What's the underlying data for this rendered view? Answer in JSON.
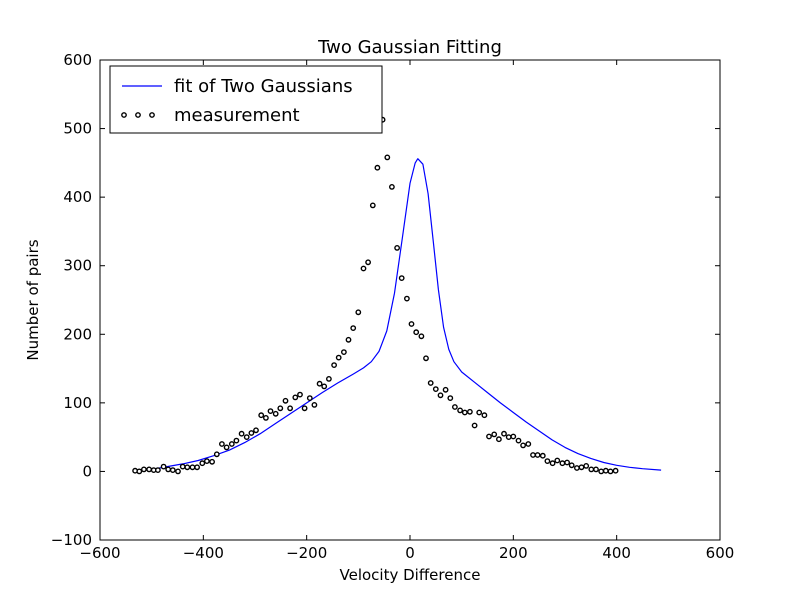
{
  "chart_data": {
    "type": "scatter",
    "title": "Two Gaussian Fitting",
    "xlabel": "Velocity Difference",
    "ylabel": "Number of pairs",
    "xlim": [
      -600,
      600
    ],
    "ylim": [
      -100,
      600
    ],
    "xticks": [
      -600,
      -400,
      -200,
      0,
      200,
      400,
      600
    ],
    "yticks": [
      -100,
      0,
      100,
      200,
      300,
      400,
      500,
      600
    ],
    "xtick_labels": [
      "−600",
      "−400",
      "−200",
      "0",
      "200",
      "400",
      "600"
    ],
    "ytick_labels": [
      "−100",
      "0",
      "100",
      "200",
      "300",
      "400",
      "500",
      "600"
    ],
    "grid": false,
    "legend_position": "top-left",
    "colors": {
      "fit_line": "#0000ff",
      "markers": "#000000"
    },
    "legend": [
      {
        "label": "fit of Two Gaussians",
        "style": "line"
      },
      {
        "label": "measurement",
        "style": "markers"
      }
    ],
    "series": [
      {
        "name": "measurement",
        "style": "markers",
        "points": [
          [
            -532,
            1
          ],
          [
            -524,
            0
          ],
          [
            -515,
            3
          ],
          [
            -505,
            3
          ],
          [
            -496,
            2
          ],
          [
            -488,
            2
          ],
          [
            -477,
            7
          ],
          [
            -468,
            3
          ],
          [
            -459,
            2
          ],
          [
            -449,
            0
          ],
          [
            -440,
            7
          ],
          [
            -431,
            6
          ],
          [
            -421,
            6
          ],
          [
            -412,
            6
          ],
          [
            -402,
            12
          ],
          [
            -393,
            15
          ],
          [
            -383,
            14
          ],
          [
            -374,
            25
          ],
          [
            -364,
            40
          ],
          [
            -355,
            35
          ],
          [
            -345,
            40
          ],
          [
            -336,
            45
          ],
          [
            -326,
            55
          ],
          [
            -316,
            50
          ],
          [
            -307,
            56
          ],
          [
            -298,
            60
          ],
          [
            -288,
            82
          ],
          [
            -279,
            78
          ],
          [
            -270,
            88
          ],
          [
            -260,
            84
          ],
          [
            -251,
            92
          ],
          [
            -241,
            103
          ],
          [
            -232,
            92
          ],
          [
            -222,
            108
          ],
          [
            -213,
            112
          ],
          [
            -204,
            92
          ],
          [
            -194,
            107
          ],
          [
            -185,
            97
          ],
          [
            -175,
            128
          ],
          [
            -166,
            124
          ],
          [
            -157,
            135
          ],
          [
            -147,
            155
          ],
          [
            -138,
            166
          ],
          [
            -128,
            174
          ],
          [
            -119,
            192
          ],
          [
            -110,
            209
          ],
          [
            -100,
            232
          ],
          [
            -90,
            296
          ],
          [
            -81,
            305
          ],
          [
            -72,
            388
          ],
          [
            -63,
            443
          ],
          [
            -53,
            513
          ],
          [
            -44,
            458
          ],
          [
            -35,
            415
          ],
          [
            -25,
            326
          ],
          [
            -16,
            282
          ],
          [
            -6,
            252
          ],
          [
            3,
            215
          ],
          [
            12,
            203
          ],
          [
            22,
            197
          ],
          [
            31,
            165
          ],
          [
            40,
            129
          ],
          [
            50,
            120
          ],
          [
            59,
            111
          ],
          [
            69,
            119
          ],
          [
            78,
            107
          ],
          [
            87,
            94
          ],
          [
            97,
            89
          ],
          [
            106,
            86
          ],
          [
            116,
            87
          ],
          [
            125,
            67
          ],
          [
            134,
            86
          ],
          [
            144,
            82
          ],
          [
            153,
            51
          ],
          [
            163,
            54
          ],
          [
            172,
            47
          ],
          [
            182,
            55
          ],
          [
            191,
            50
          ],
          [
            200,
            51
          ],
          [
            210,
            45
          ],
          [
            219,
            38
          ],
          [
            229,
            40
          ],
          [
            238,
            24
          ],
          [
            247,
            24
          ],
          [
            257,
            23
          ],
          [
            266,
            15
          ],
          [
            276,
            12
          ],
          [
            285,
            16
          ],
          [
            295,
            12
          ],
          [
            304,
            13
          ],
          [
            313,
            9
          ],
          [
            323,
            5
          ],
          [
            332,
            6
          ],
          [
            341,
            8
          ],
          [
            351,
            3
          ],
          [
            360,
            3
          ],
          [
            370,
            0
          ],
          [
            379,
            1
          ],
          [
            388,
            0
          ],
          [
            398,
            1
          ]
        ]
      },
      {
        "name": "fit of Two Gaussians",
        "style": "line",
        "points": [
          [
            -532,
            1
          ],
          [
            -500,
            3
          ],
          [
            -470,
            7
          ],
          [
            -440,
            11
          ],
          [
            -410,
            16
          ],
          [
            -380,
            23
          ],
          [
            -350,
            31
          ],
          [
            -320,
            42
          ],
          [
            -290,
            55
          ],
          [
            -260,
            70
          ],
          [
            -230,
            85
          ],
          [
            -200,
            100
          ],
          [
            -170,
            115
          ],
          [
            -140,
            129
          ],
          [
            -110,
            142
          ],
          [
            -90,
            151
          ],
          [
            -75,
            160
          ],
          [
            -60,
            175
          ],
          [
            -45,
            205
          ],
          [
            -30,
            260
          ],
          [
            -15,
            340
          ],
          [
            0,
            420
          ],
          [
            10,
            450
          ],
          [
            15,
            456
          ],
          [
            25,
            448
          ],
          [
            35,
            405
          ],
          [
            45,
            335
          ],
          [
            55,
            265
          ],
          [
            65,
            210
          ],
          [
            75,
            178
          ],
          [
            85,
            160
          ],
          [
            100,
            145
          ],
          [
            125,
            130
          ],
          [
            150,
            115
          ],
          [
            175,
            100
          ],
          [
            200,
            86
          ],
          [
            225,
            72
          ],
          [
            250,
            59
          ],
          [
            275,
            46
          ],
          [
            300,
            35
          ],
          [
            325,
            26
          ],
          [
            350,
            19
          ],
          [
            375,
            13
          ],
          [
            400,
            9
          ],
          [
            425,
            6
          ],
          [
            450,
            4
          ],
          [
            486,
            2
          ]
        ]
      }
    ]
  }
}
